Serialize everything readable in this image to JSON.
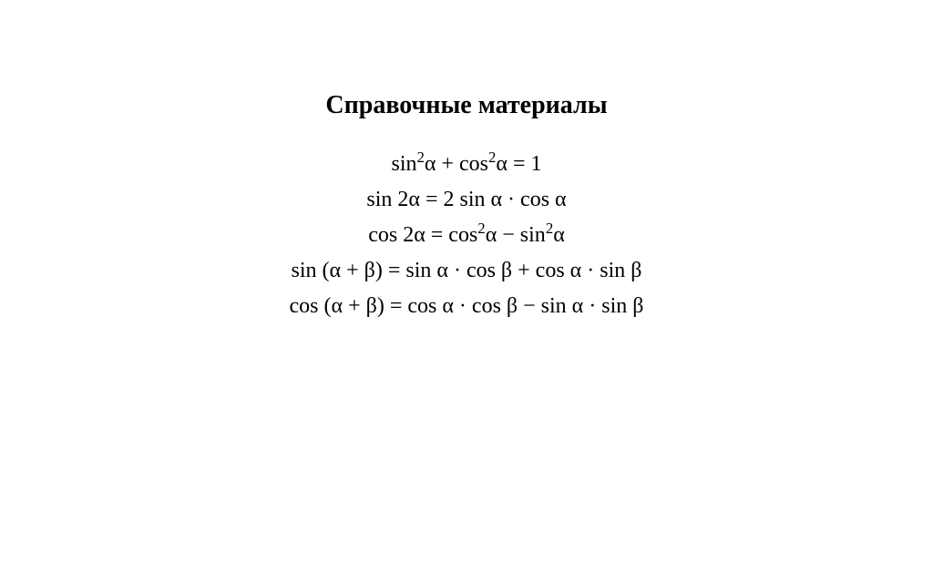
{
  "document": {
    "title": "Справочные материалы",
    "title_fontsize": 28,
    "title_fontweight": "bold",
    "formula_fontsize": 24,
    "text_color": "#000000",
    "background_color": "#ffffff",
    "formulas": [
      {
        "html": "sin<sup>2</sup>α + cos<sup>2</sup>α = 1"
      },
      {
        "html": "sin 2α = 2 sin α · cos α"
      },
      {
        "html": "cos 2α = cos<sup>2</sup>α − sin<sup>2</sup>α"
      },
      {
        "html": "sin (α + β) = sin α · cos β + cos α · sin β"
      },
      {
        "html": "cos (α + β) = cos α · cos β − sin α · sin β"
      }
    ]
  }
}
